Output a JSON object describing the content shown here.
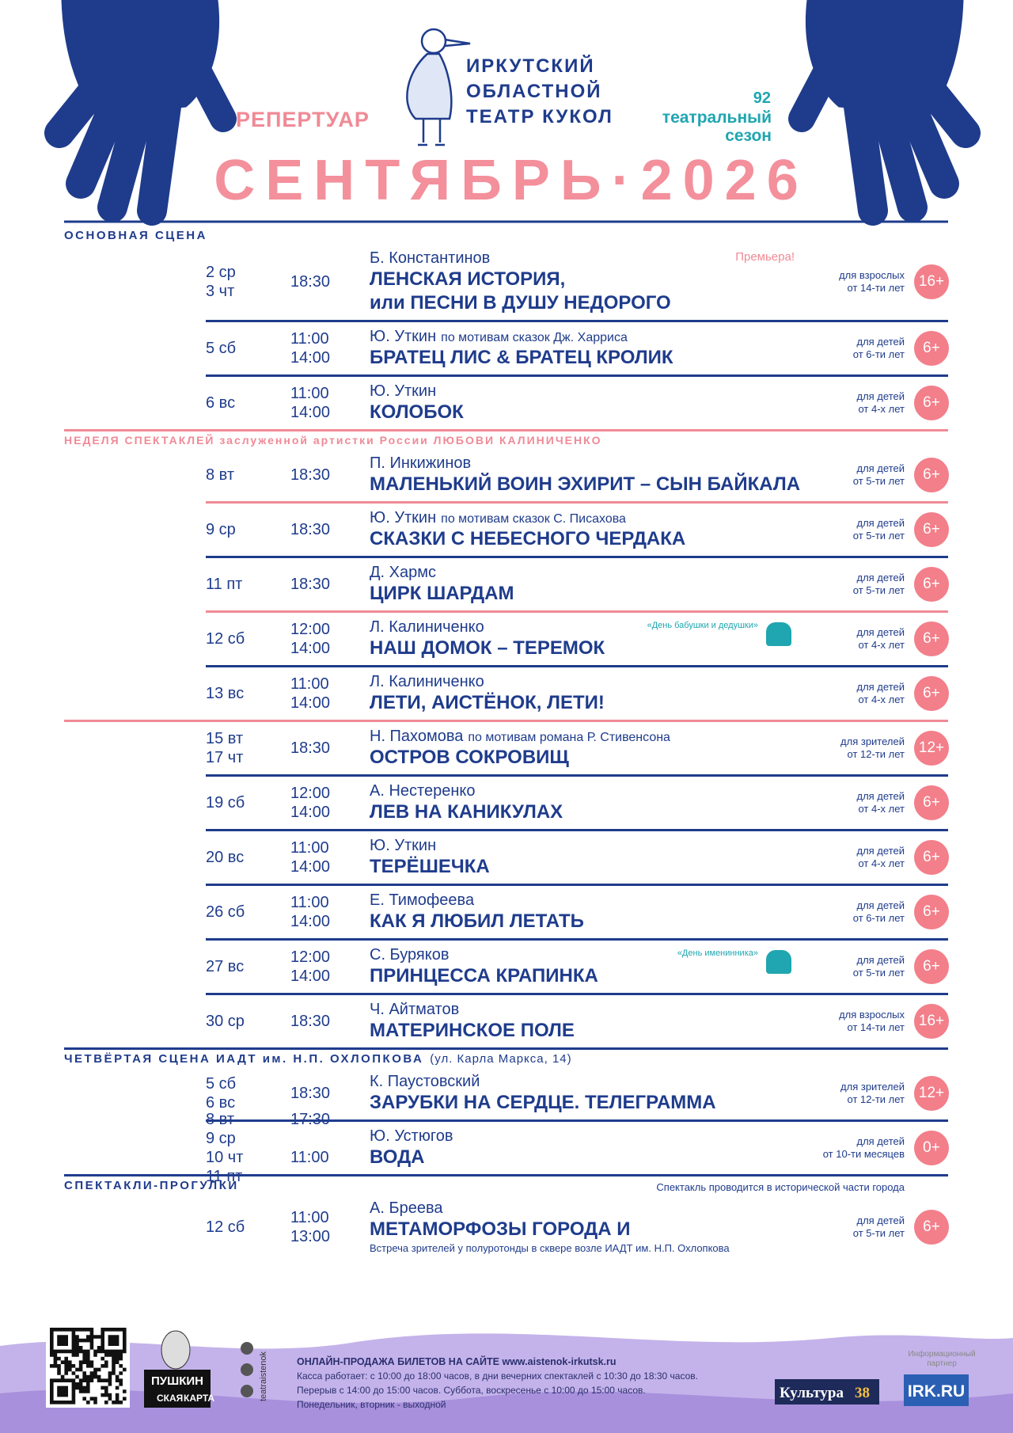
{
  "header": {
    "repertoire": "РЕПЕРТУАР",
    "theater": [
      "ИРКУТСКИЙ",
      "ОБЛАСТНОЙ",
      "ТЕАТР КУКОЛ"
    ],
    "season_number": "92",
    "season_label": [
      "театральный",
      "сезон"
    ],
    "month": "СЕНТЯБРЬ·2026"
  },
  "sections": [
    {
      "title": "ОСНОВНАЯ СЦЕНА",
      "rows": [
        {
          "dates": [
            "2 ср",
            "3 чт"
          ],
          "times": [
            "18:30"
          ],
          "author": "Б. Константинов",
          "title": [
            "ЛЕНСКАЯ ИСТОРИЯ,",
            "или ПЕСНИ В ДУШУ НЕДОРОГО"
          ],
          "tag": "Премьера!",
          "audience": [
            "для взрослых",
            "от 14-ти лет"
          ],
          "age": "16+"
        },
        {
          "dates": [
            "5 сб"
          ],
          "times": [
            "11:00",
            "14:00"
          ],
          "author": "Ю. Уткин",
          "author_note": "по мотивам сказок Дж. Харриса",
          "title": [
            "БРАТЕЦ ЛИС & БРАТЕЦ КРОЛИК"
          ],
          "audience": [
            "для детей",
            "от 6-ти лет"
          ],
          "age": "6+"
        },
        {
          "dates": [
            "6 вс"
          ],
          "times": [
            "11:00",
            "14:00"
          ],
          "author": "Ю. Уткин",
          "title": [
            "КОЛОБОК"
          ],
          "audience": [
            "для детей",
            "от 4-х лет"
          ],
          "age": "6+"
        }
      ]
    },
    {
      "title": "НЕДЕЛЯ СПЕКТАКЛЕЙ заслуженной артистки России ЛЮБОВИ КАЛИНИЧЕНКО",
      "rows": [
        {
          "dates": [
            "8 вт"
          ],
          "times": [
            "18:30"
          ],
          "author": "П. Инкижинов",
          "title": [
            "МАЛЕНЬКИЙ ВОИН ЭХИРИТ – СЫН БАЙКАЛА"
          ],
          "audience": [
            "для детей",
            "от 5-ти лет"
          ],
          "age": "6+"
        },
        {
          "dates": [
            "9 ср"
          ],
          "times": [
            "18:30"
          ],
          "author": "Ю. Уткин",
          "author_note": "по мотивам сказок С. Писахова",
          "title": [
            "СКАЗКИ С НЕБЕСНОГО ЧЕРДАКА"
          ],
          "audience": [
            "для детей",
            "от 5-ти лет"
          ],
          "age": "6+"
        },
        {
          "dates": [
            "11 пт"
          ],
          "times": [
            "18:30"
          ],
          "author": "Д. Хармс",
          "title": [
            "ЦИРК ШАРДАМ"
          ],
          "audience": [
            "для детей",
            "от 5-ти лет"
          ],
          "age": "6+"
        },
        {
          "dates": [
            "12 сб"
          ],
          "times": [
            "12:00",
            "14:00"
          ],
          "author": "Л. Калиниченко",
          "title": [
            "НАШ ДОМОК – ТЕРЕМОК"
          ],
          "tag": "«День бабушки и дедушки»",
          "audience": [
            "для детей",
            "от 4-х лет"
          ],
          "age": "6+"
        },
        {
          "dates": [
            "13 вс"
          ],
          "times": [
            "11:00",
            "14:00"
          ],
          "author": "Л. Калиниченко",
          "title": [
            "ЛЕТИ, АИСТЁНОК, ЛЕТИ!"
          ],
          "audience": [
            "для детей",
            "от 4-х лет"
          ],
          "age": "6+"
        }
      ]
    },
    {
      "rows": [
        {
          "dates": [
            "15 вт",
            "17 чт"
          ],
          "times": [
            "18:30"
          ],
          "author": "Н. Пахомова",
          "author_note": "по мотивам романа Р. Стивенсона",
          "title": [
            "ОСТРОВ СОКРОВИЩ"
          ],
          "audience": [
            "для зрителей",
            "от 12-ти лет"
          ],
          "age": "12+"
        },
        {
          "dates": [
            "19 сб"
          ],
          "times": [
            "12:00",
            "14:00"
          ],
          "author": "А. Нестеренко",
          "title": [
            "ЛЕВ НА КАНИКУЛАХ"
          ],
          "audience": [
            "для детей",
            "от 4-х лет"
          ],
          "age": "6+"
        },
        {
          "dates": [
            "20 вс"
          ],
          "times": [
            "11:00",
            "14:00"
          ],
          "author": "Ю. Уткин",
          "title": [
            "ТЕРЁШЕЧКА"
          ],
          "audience": [
            "для детей",
            "от 4-х лет"
          ],
          "age": "6+"
        },
        {
          "dates": [
            "26 сб"
          ],
          "times": [
            "11:00",
            "14:00"
          ],
          "author": "Е. Тимофеева",
          "title": [
            "КАК Я ЛЮБИЛ ЛЕТАТЬ"
          ],
          "audience": [
            "для детей",
            "от 6-ти лет"
          ],
          "age": "6+"
        },
        {
          "dates": [
            "27 вс"
          ],
          "times": [
            "12:00",
            "14:00"
          ],
          "author": "С. Буряков",
          "title": [
            "ПРИНЦЕССА КРАПИНКА"
          ],
          "tag": "«День именинника»",
          "audience": [
            "для детей",
            "от 5-ти лет"
          ],
          "age": "6+"
        },
        {
          "dates": [
            "30 ср"
          ],
          "times": [
            "18:30"
          ],
          "author": "Ч. Айтматов",
          "title": [
            "МАТЕРИНСКОЕ ПОЛЕ"
          ],
          "audience": [
            "для взрослых",
            "от 14-ти лет"
          ],
          "age": "16+"
        }
      ]
    },
    {
      "title": "ЧЕТВЁРТАЯ СЦЕНА ИАДТ им. Н.П. ОХЛОПКОВА",
      "address": "(ул. Карла Маркса, 14)",
      "rows": [
        {
          "dates": [
            "5 сб",
            "6 вс"
          ],
          "times": [
            "18:30"
          ],
          "author": "К. Паустовский",
          "title": [
            "ЗАРУБКИ НА СЕРДЦЕ. ТЕЛЕГРАММА"
          ],
          "audience": [
            "для зрителей",
            "от 12-ти лет"
          ],
          "age": "12+"
        },
        {
          "dates": [
            "8 вт",
            "9 ср",
            "10 чт",
            "11 пт"
          ],
          "times": [
            "17:30",
            "11:00"
          ],
          "author": "Ю. Устюгов",
          "title": [
            "ВОДА"
          ],
          "audience": [
            "для детей",
            "от 10-ти месяцев"
          ],
          "age": "0+"
        }
      ]
    },
    {
      "title": "СПЕКТАКЛИ-ПРОГУЛКИ",
      "note": "Спектакль проводится в исторической части города",
      "rows": [
        {
          "dates": [
            "12 сб"
          ],
          "times": [
            "11:00",
            "13:00"
          ],
          "author": "А. Бреева",
          "title": [
            "МЕТАМОРФОЗЫ ГОРОДА И"
          ],
          "subnote": "Встреча зрителей у полуротонды в сквере возле ИАДТ им. Н.П. Охлопкова",
          "audience": [
            "для детей",
            "от 5-ти лет"
          ],
          "age": "6+"
        }
      ]
    }
  ],
  "footer": {
    "online": "ОНЛАЙН-ПРОДАЖА БИЛЕТОВ НА САЙТЕ www.aistenok-irkutsk.ru",
    "info": [
      "Касса работает: с 10:00 до 18:00 часов, в дни вечерних спектаклей с 10:30 до 18:30 часов.",
      "Перерыв с 14:00 до 15:00 часов. Суббота, воскресенье с 10:00 до 15:00 часов.",
      "Понедельник, вторник - выходной"
    ],
    "social": "teatraistenok",
    "pushkin_card": [
      "ПУШКИН",
      "СКАЯ",
      "КАРТА"
    ],
    "partner_label": [
      "Информационный",
      "партнер"
    ],
    "partners": [
      "Культура",
      "38",
      "IRK.RU"
    ]
  }
}
